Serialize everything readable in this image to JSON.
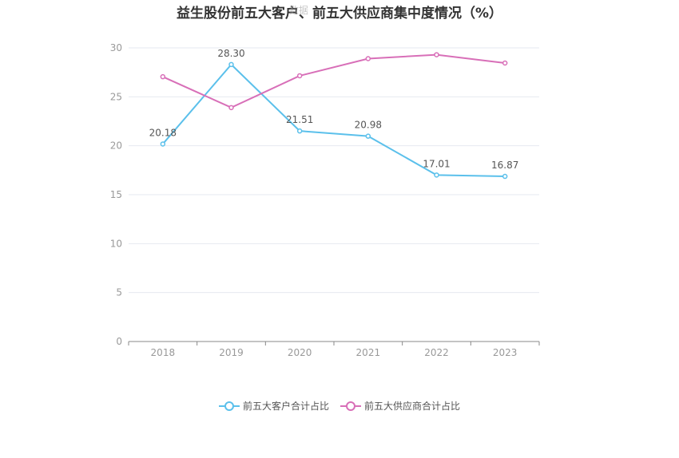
{
  "title": "益生股份前五大客户、前五大供应商集中度情况（%）",
  "watermark": "数据",
  "chart_data": {
    "type": "line",
    "categories": [
      "2018",
      "2019",
      "2020",
      "2021",
      "2022",
      "2023"
    ],
    "ylim": [
      0,
      30
    ],
    "yticks": [
      0,
      5,
      10,
      15,
      20,
      25,
      30
    ],
    "grid": true,
    "legend_position": "bottom",
    "series": [
      {
        "name": "前五大客户合计占比",
        "color": "#5bc0eb",
        "values": [
          20.18,
          28.3,
          21.51,
          20.98,
          17.01,
          16.87
        ],
        "labels": [
          "20.18",
          "28.30",
          "21.51",
          "20.98",
          "17.01",
          "16.87"
        ]
      },
      {
        "name": "前五大供应商合计占比",
        "color": "#d86fb8",
        "values": [
          27.05,
          23.9,
          27.15,
          28.9,
          29.3,
          28.45
        ]
      }
    ]
  }
}
